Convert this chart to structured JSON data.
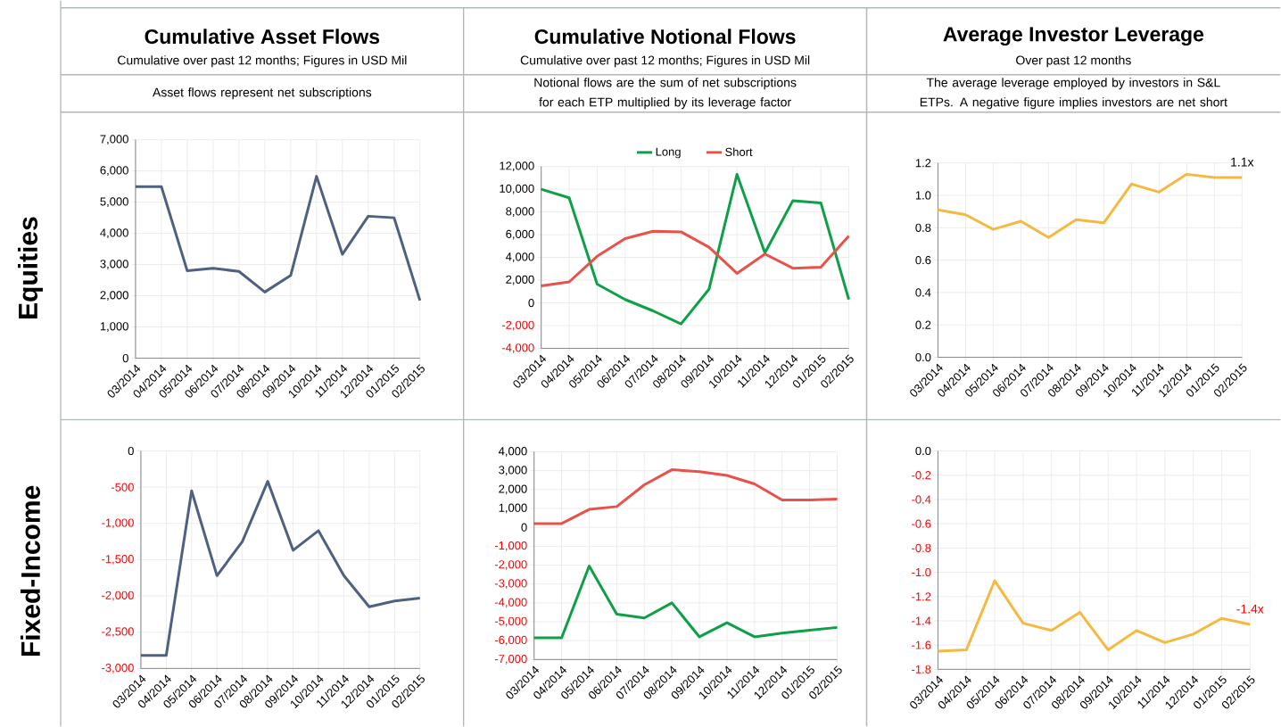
{
  "chart_data": [
    {
      "type": "line",
      "title": "Cumulative Asset Flows",
      "subtitle": "Cumulative over past 12 months; Figures  in USD Mil",
      "ylabel": "Equities",
      "annotations": [
        "Asset flows represent net subscriptions"
      ],
      "categories": [
        "03/2014",
        "04/2014",
        "05/2014",
        "06/2014",
        "07/2014",
        "08/2014",
        "09/2014",
        "10/2014",
        "11/2014",
        "12/2014",
        "01/2015",
        "02/2015"
      ],
      "series": [
        {
          "color": "#4f6180",
          "values": [
            5500,
            5500,
            2800,
            2880,
            2780,
            2120,
            2650,
            5830,
            3330,
            4550,
            4500,
            1850
          ]
        }
      ],
      "ylim": [
        0,
        7000
      ],
      "yticks": [
        {
          "value": 0,
          "label": "0"
        },
        {
          "value": 1000,
          "label": "1,000"
        },
        {
          "value": 2000,
          "label": "2,000"
        },
        {
          "value": 3000,
          "label": "3,000"
        },
        {
          "value": 4000,
          "label": "4,000"
        },
        {
          "value": 5000,
          "label": "5,000"
        },
        {
          "value": 6000,
          "label": "6,000"
        },
        {
          "value": 7000,
          "label": "7,000"
        }
      ],
      "grid": true
    },
    {
      "type": "line",
      "title": "Cumulative Notional Flows",
      "subtitle": "Cumulative over past 12 months; Figures in USD Mil",
      "annotations": [
        "Notional flows are the sum of net subscriptions for each ETP multiplied by its leverage factor"
      ],
      "categories": [
        "03/2014",
        "04/2014",
        "05/2014",
        "06/2014",
        "07/2014",
        "08/2014",
        "09/2014",
        "10/2014",
        "11/2014",
        "12/2014",
        "01/2015",
        "02/2015"
      ],
      "series": [
        {
          "name": "Long",
          "color": "#0ea046",
          "values": [
            10000,
            9250,
            1650,
            300,
            -700,
            -1850,
            1200,
            11300,
            4400,
            9000,
            8800,
            300
          ]
        },
        {
          "name": "Short",
          "color": "#e8524a",
          "values": [
            1500,
            1850,
            4100,
            5650,
            6300,
            6250,
            4900,
            2600,
            4300,
            3050,
            3150,
            5900
          ]
        }
      ],
      "ylim": [
        -4000,
        12000
      ],
      "yticks": [
        {
          "value": -4000,
          "label": "-4,000"
        },
        {
          "value": -2000,
          "label": "-2,000"
        },
        {
          "value": 0,
          "label": "0"
        },
        {
          "value": 2000,
          "label": "2,000"
        },
        {
          "value": 4000,
          "label": "4,000"
        },
        {
          "value": 6000,
          "label": "6,000"
        },
        {
          "value": 8000,
          "label": "8,000"
        },
        {
          "value": 10000,
          "label": "10,000"
        },
        {
          "value": 12000,
          "label": "12,000"
        }
      ],
      "grid": true,
      "legend": "top"
    },
    {
      "type": "line",
      "title": "Average Investor Leverage",
      "subtitle": "Over past 12 months",
      "annotations": [
        "The average leverage employed by investors in S&L ETPs. A negative figure implies investors are net short",
        {
          "text": "1.1x",
          "x": "02/2015",
          "y": 1.11
        }
      ],
      "categories": [
        "03/2014",
        "04/2014",
        "05/2014",
        "06/2014",
        "07/2014",
        "08/2014",
        "09/2014",
        "10/2014",
        "11/2014",
        "12/2014",
        "01/2015",
        "02/2015"
      ],
      "series": [
        {
          "color": "#f5b942",
          "values": [
            0.91,
            0.88,
            0.79,
            0.84,
            0.74,
            0.85,
            0.83,
            1.07,
            1.02,
            1.13,
            1.11,
            1.11
          ]
        }
      ],
      "ylim": [
        0,
        1.2
      ],
      "yticks": [
        {
          "value": 0,
          "label": "0.0"
        },
        {
          "value": 0.2,
          "label": "0.2"
        },
        {
          "value": 0.4,
          "label": "0.4"
        },
        {
          "value": 0.6,
          "label": "0.6"
        },
        {
          "value": 0.8,
          "label": "0.8"
        },
        {
          "value": 1.0,
          "label": "1.0"
        },
        {
          "value": 1.2,
          "label": "1.2"
        }
      ],
      "grid": true
    },
    {
      "type": "line",
      "ylabel": "Fixed-Income",
      "categories": [
        "03/2014",
        "04/2014",
        "05/2014",
        "06/2014",
        "07/2014",
        "08/2014",
        "09/2014",
        "10/2014",
        "11/2014",
        "12/2014",
        "01/2015",
        "02/2015"
      ],
      "series": [
        {
          "color": "#4f6180",
          "values": [
            -2820,
            -2820,
            -550,
            -1720,
            -1250,
            -420,
            -1370,
            -1100,
            -1720,
            -2150,
            -2070,
            -2030
          ]
        }
      ],
      "ylim": [
        -3000,
        0
      ],
      "yticks": [
        {
          "value": -3000,
          "label": "-3,000"
        },
        {
          "value": -2500,
          "label": "-2,500"
        },
        {
          "value": -2000,
          "label": "-2,000"
        },
        {
          "value": -1500,
          "label": "-1,500"
        },
        {
          "value": -1000,
          "label": "-1,000"
        },
        {
          "value": -500,
          "label": "-500"
        },
        {
          "value": 0,
          "label": "0"
        }
      ],
      "grid": true
    },
    {
      "type": "line",
      "categories": [
        "03/2014",
        "04/2014",
        "05/2014",
        "06/2014",
        "07/2014",
        "08/2014",
        "09/2014",
        "10/2014",
        "11/2014",
        "12/2014",
        "01/2015",
        "02/2015"
      ],
      "series": [
        {
          "color": "#e8524a",
          "values": [
            200,
            200,
            950,
            1100,
            2250,
            3050,
            2950,
            2750,
            2300,
            1450,
            1450,
            1500
          ]
        },
        {
          "color": "#0ea046",
          "values": [
            -5850,
            -5850,
            -2050,
            -4600,
            -4800,
            -4000,
            -5800,
            -5050,
            -5800,
            -5600,
            -5450,
            -5300
          ]
        }
      ],
      "ylim": [
        -7000,
        4000
      ],
      "yticks": [
        {
          "value": -7000,
          "label": "-7,000"
        },
        {
          "value": -6000,
          "label": "-6,000"
        },
        {
          "value": -5000,
          "label": "-5,000"
        },
        {
          "value": -4000,
          "label": "-4,000"
        },
        {
          "value": -3000,
          "label": "-3,000"
        },
        {
          "value": -2000,
          "label": "-2,000"
        },
        {
          "value": -1000,
          "label": "-1,000"
        },
        {
          "value": 0,
          "label": "0"
        },
        {
          "value": 1000,
          "label": "1,000"
        },
        {
          "value": 2000,
          "label": "2,000"
        },
        {
          "value": 3000,
          "label": "3,000"
        },
        {
          "value": 4000,
          "label": "4,000"
        }
      ],
      "grid": true
    },
    {
      "type": "line",
      "annotations": [
        {
          "text": "-1.4x",
          "x": "02/2015",
          "y": -1.43
        }
      ],
      "categories": [
        "03/2014",
        "04/2014",
        "05/2014",
        "06/2014",
        "07/2014",
        "08/2014",
        "09/2014",
        "10/2014",
        "11/2014",
        "12/2014",
        "01/2015",
        "02/2015"
      ],
      "series": [
        {
          "color": "#f5b942",
          "values": [
            -1.65,
            -1.64,
            -1.07,
            -1.42,
            -1.48,
            -1.33,
            -1.64,
            -1.48,
            -1.58,
            -1.51,
            -1.38,
            -1.43
          ]
        }
      ],
      "ylim": [
        -1.8,
        0
      ],
      "yticks": [
        {
          "value": -1.8,
          "label": "-1.8"
        },
        {
          "value": -1.6,
          "label": "-1.6"
        },
        {
          "value": -1.4,
          "label": "-1.4"
        },
        {
          "value": -1.2,
          "label": "-1.2"
        },
        {
          "value": -1.0,
          "label": "-1.0"
        },
        {
          "value": -0.8,
          "label": "-0.8"
        },
        {
          "value": -0.6,
          "label": "-0.6"
        },
        {
          "value": -0.4,
          "label": "-0.4"
        },
        {
          "value": -0.2,
          "label": "-0.2"
        },
        {
          "value": 0,
          "label": "0.0"
        }
      ],
      "grid": true
    }
  ]
}
